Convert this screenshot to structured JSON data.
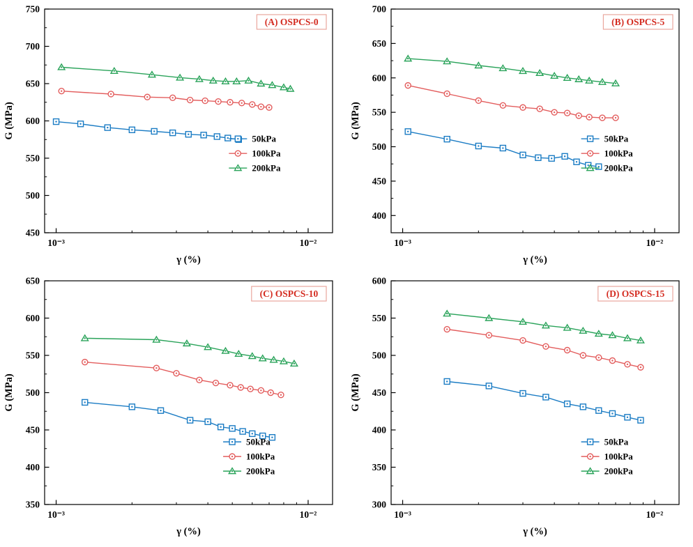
{
  "page": {
    "background": "#ffffff"
  },
  "colors": {
    "axis": "#000000",
    "panel_label_text": "#d42c21",
    "panel_label_border": "#eaa79e",
    "series": {
      "50kPa": "#1b7cc4",
      "100kPa": "#e35d5d",
      "200kPa": "#2aa35a"
    }
  },
  "legend_labels": [
    "50kPa",
    "100kPa",
    "200kPa"
  ],
  "chart_data": [
    {
      "type": "line",
      "panel_label": "(A) OSPCS-0",
      "xlabel": "γ (%)",
      "ylabel": "G (MPa)",
      "xscale": "log",
      "xlim": [
        0.0009,
        0.0125
      ],
      "ylim": [
        450,
        750
      ],
      "ytick_step": 50,
      "ytick_minor_step": 25,
      "xticks": [
        {
          "v": 0.001,
          "label": "10⁻³"
        },
        {
          "v": 0.01,
          "label": "10⁻²"
        }
      ],
      "legend_pos": {
        "x": 0.64,
        "y": 0.58
      },
      "grid": false,
      "series": [
        {
          "name": "50kPa",
          "marker": "square",
          "x": [
            0.001,
            0.00125,
            0.0016,
            0.002,
            0.00245,
            0.0029,
            0.00335,
            0.00385,
            0.00435,
            0.0048,
            0.0053
          ],
          "y": [
            599,
            596,
            591,
            588,
            586,
            584,
            582,
            581,
            579,
            577,
            575
          ]
        },
        {
          "name": "100kPa",
          "marker": "circle",
          "x": [
            0.00105,
            0.00165,
            0.0023,
            0.0029,
            0.0034,
            0.0039,
            0.0044,
            0.0049,
            0.00545,
            0.006,
            0.0065,
            0.007
          ],
          "y": [
            640,
            636,
            632,
            631,
            628,
            627,
            626,
            625,
            624,
            622,
            619,
            618
          ]
        },
        {
          "name": "200kPa",
          "marker": "triangle",
          "x": [
            0.00105,
            0.0017,
            0.0024,
            0.0031,
            0.0037,
            0.0042,
            0.0047,
            0.0052,
            0.0058,
            0.0065,
            0.0072,
            0.008,
            0.0085
          ],
          "y": [
            672,
            667,
            662,
            658,
            656,
            654,
            653,
            653,
            654,
            650,
            648,
            645,
            643
          ]
        }
      ]
    },
    {
      "type": "line",
      "panel_label": "(B) OSPCS-5",
      "xlabel": "γ (%)",
      "ylabel": "G (MPa)",
      "xscale": "log",
      "xlim": [
        0.0009,
        0.0125
      ],
      "ylim": [
        375,
        700
      ],
      "ytick_step": 50,
      "ytick_minor_step": 25,
      "ytick_start": 400,
      "xticks": [
        {
          "v": 0.001,
          "label": "10⁻³"
        },
        {
          "v": 0.01,
          "label": "10⁻²"
        }
      ],
      "legend_pos": {
        "x": 0.66,
        "y": 0.58
      },
      "grid": false,
      "series": [
        {
          "name": "50kPa",
          "marker": "square",
          "x": [
            0.00105,
            0.0015,
            0.002,
            0.0025,
            0.003,
            0.00345,
            0.0039,
            0.0044,
            0.0049,
            0.00545,
            0.006
          ],
          "y": [
            522,
            511,
            501,
            498,
            488,
            484,
            483,
            486,
            478,
            473,
            471
          ]
        },
        {
          "name": "100kPa",
          "marker": "circle",
          "x": [
            0.00105,
            0.0015,
            0.002,
            0.0025,
            0.003,
            0.0035,
            0.004,
            0.0045,
            0.005,
            0.0055,
            0.0062,
            0.007
          ],
          "y": [
            589,
            577,
            567,
            560,
            557,
            555,
            550,
            549,
            545,
            543,
            542,
            542
          ]
        },
        {
          "name": "200kPa",
          "marker": "triangle",
          "x": [
            0.00105,
            0.0015,
            0.002,
            0.0025,
            0.003,
            0.0035,
            0.004,
            0.0045,
            0.005,
            0.0055,
            0.0062,
            0.007
          ],
          "y": [
            628,
            624,
            618,
            614,
            610,
            607,
            603,
            600,
            598,
            596,
            594,
            592
          ]
        }
      ]
    },
    {
      "type": "line",
      "panel_label": "(C) OSPCS-10",
      "xlabel": "γ (%)",
      "ylabel": "G (MPa)",
      "xscale": "log",
      "xlim": [
        0.0009,
        0.0125
      ],
      "ylim": [
        350,
        650
      ],
      "ytick_step": 50,
      "ytick_minor_step": 25,
      "xticks": [
        {
          "v": 0.001,
          "label": "10⁻³"
        },
        {
          "v": 0.01,
          "label": "10⁻²"
        }
      ],
      "legend_pos": {
        "x": 0.62,
        "y": 0.72
      },
      "grid": false,
      "series": [
        {
          "name": "50kPa",
          "marker": "square",
          "x": [
            0.0013,
            0.002,
            0.0026,
            0.0034,
            0.004,
            0.0045,
            0.005,
            0.0055,
            0.006,
            0.0066,
            0.0072
          ],
          "y": [
            487,
            481,
            476,
            463,
            461,
            454,
            452,
            448,
            445,
            442,
            440
          ]
        },
        {
          "name": "100kPa",
          "marker": "circle",
          "x": [
            0.0013,
            0.0025,
            0.003,
            0.0037,
            0.0043,
            0.0049,
            0.0054,
            0.0059,
            0.0065,
            0.0071,
            0.0078
          ],
          "y": [
            541,
            533,
            526,
            517,
            513,
            510,
            507,
            505,
            503,
            500,
            497
          ]
        },
        {
          "name": "200kPa",
          "marker": "triangle",
          "x": [
            0.0013,
            0.0025,
            0.0033,
            0.004,
            0.0047,
            0.0053,
            0.006,
            0.0066,
            0.0073,
            0.008,
            0.0088
          ],
          "y": [
            573,
            571,
            566,
            561,
            556,
            552,
            549,
            546,
            544,
            542,
            539
          ]
        }
      ]
    },
    {
      "type": "line",
      "panel_label": "(D) OSPCS-15",
      "xlabel": "γ (%)",
      "ylabel": "G (MPa)",
      "xscale": "log",
      "xlim": [
        0.0009,
        0.0125
      ],
      "ylim": [
        300,
        600
      ],
      "ytick_step": 50,
      "ytick_minor_step": 25,
      "xticks": [
        {
          "v": 0.001,
          "label": "10⁻³"
        },
        {
          "v": 0.01,
          "label": "10⁻²"
        }
      ],
      "legend_pos": {
        "x": 0.66,
        "y": 0.72
      },
      "grid": false,
      "series": [
        {
          "name": "50kPa",
          "marker": "square",
          "x": [
            0.0015,
            0.0022,
            0.003,
            0.0037,
            0.0045,
            0.0052,
            0.006,
            0.0068,
            0.0078,
            0.0088
          ],
          "y": [
            465,
            459,
            449,
            444,
            435,
            431,
            426,
            422,
            417,
            413
          ]
        },
        {
          "name": "100kPa",
          "marker": "circle",
          "x": [
            0.0015,
            0.0022,
            0.003,
            0.0037,
            0.0045,
            0.0052,
            0.006,
            0.0068,
            0.0078,
            0.0088
          ],
          "y": [
            535,
            527,
            520,
            512,
            507,
            500,
            497,
            493,
            488,
            484
          ]
        },
        {
          "name": "200kPa",
          "marker": "triangle",
          "x": [
            0.0015,
            0.0022,
            0.003,
            0.0037,
            0.0045,
            0.0052,
            0.006,
            0.0068,
            0.0078,
            0.0088
          ],
          "y": [
            556,
            550,
            545,
            540,
            537,
            533,
            529,
            527,
            523,
            520
          ]
        }
      ]
    }
  ]
}
